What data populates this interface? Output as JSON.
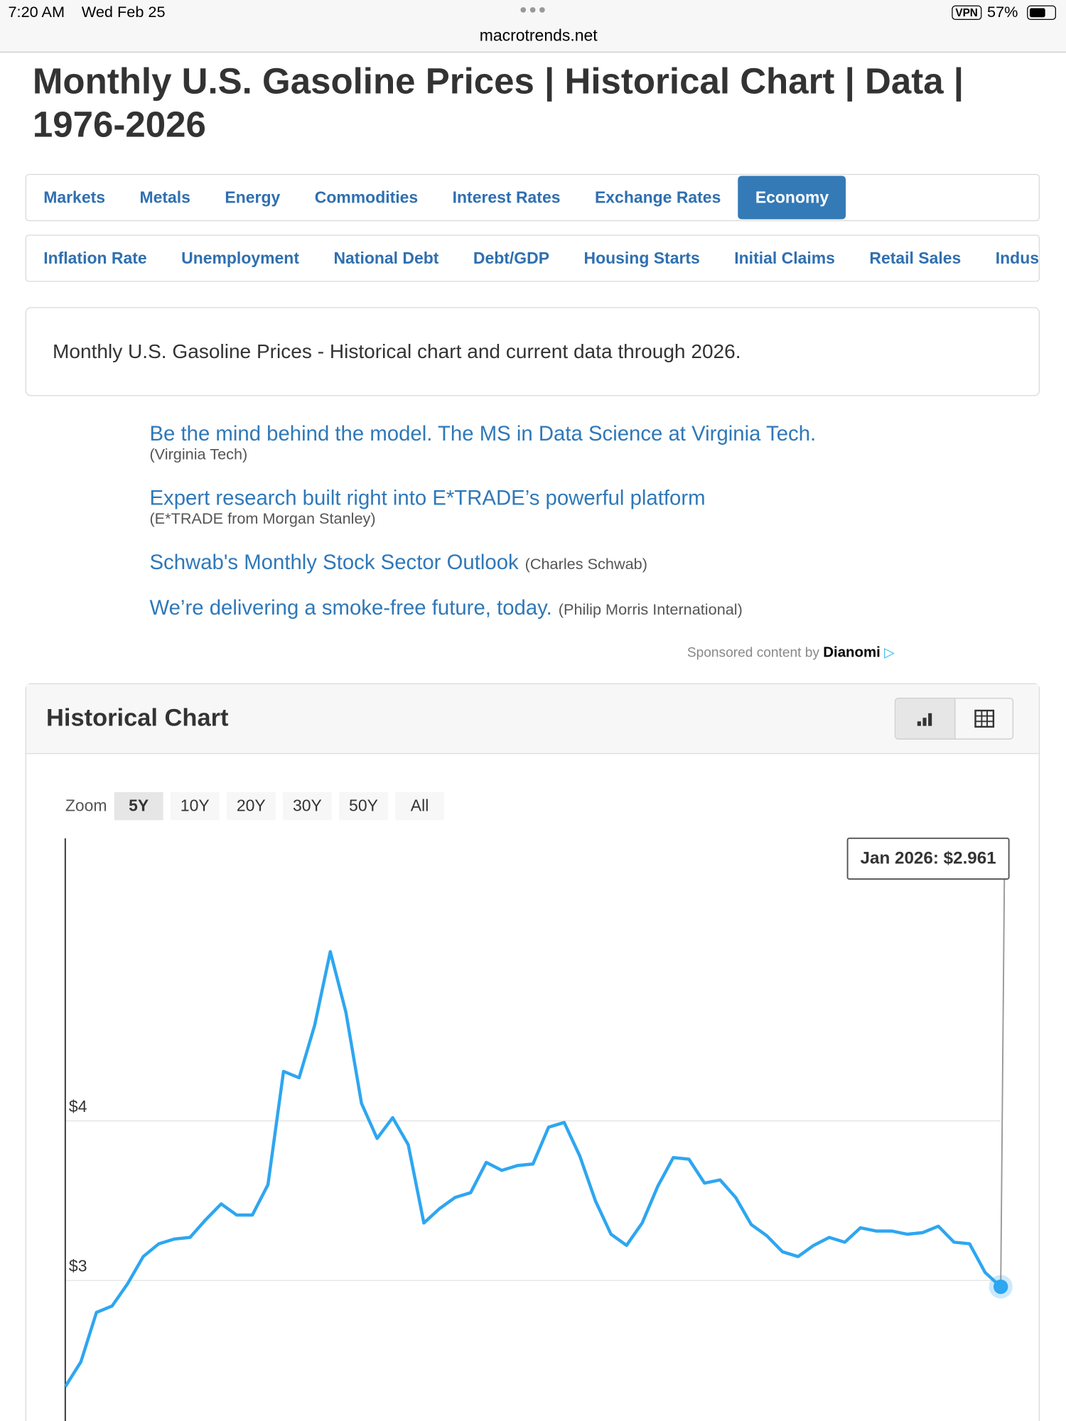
{
  "status": {
    "time": "7:20 AM",
    "date": "Wed Feb 25",
    "vpn": "VPN",
    "battery": "57%"
  },
  "url": "macrotrends.net",
  "title": "Monthly U.S. Gasoline Prices | Historical Chart | Data | 1976-2026",
  "nav_primary": {
    "items": [
      "Markets",
      "Metals",
      "Energy",
      "Commodities",
      "Interest Rates",
      "Exchange Rates",
      "Economy"
    ],
    "active": 6
  },
  "nav_secondary": {
    "items": [
      "Inflation Rate",
      "Unemployment",
      "National Debt",
      "Debt/GDP",
      "Housing Starts",
      "Initial Claims",
      "Retail Sales",
      "Industrial"
    ]
  },
  "description": "Monthly U.S. Gasoline Prices - Historical chart and current data through 2026.",
  "ads": [
    {
      "text": "Be the mind behind the model. The MS in Data Science at Virginia Tech.",
      "source": "(Virginia Tech)",
      "inline": false
    },
    {
      "text": "Expert research built right into E*TRADE’s powerful platform",
      "source": "(E*TRADE from Morgan Stanley)",
      "inline": false
    },
    {
      "text": "Schwab's Monthly Stock Sector Outlook",
      "source": "(Charles Schwab)",
      "inline": true
    },
    {
      "text": "We’re delivering a smoke-free future, today.",
      "source": "(Philip Morris International)",
      "inline": true
    }
  ],
  "sponsored": {
    "text": "Sponsored content by",
    "brand": "Dianomi"
  },
  "panel": {
    "title": "Historical Chart",
    "zoom_label": "Zoom",
    "zoom_options": [
      "5Y",
      "10Y",
      "20Y",
      "30Y",
      "50Y",
      "All"
    ],
    "zoom_active": 0
  },
  "chart_data": {
    "type": "line",
    "color": "#2ea6f0",
    "values": [
      2.335,
      2.49,
      2.8,
      2.84,
      2.98,
      3.15,
      3.23,
      3.26,
      3.27,
      3.38,
      3.48,
      3.41,
      3.41,
      3.6,
      4.31,
      4.27,
      4.6,
      5.06,
      4.68,
      4.11,
      3.89,
      4.02,
      3.85,
      3.36,
      3.45,
      3.52,
      3.55,
      3.74,
      3.69,
      3.72,
      3.73,
      3.96,
      3.99,
      3.78,
      3.5,
      3.29,
      3.22,
      3.36,
      3.59,
      3.77,
      3.76,
      3.61,
      3.63,
      3.52,
      3.35,
      3.28,
      3.18,
      3.15,
      3.22,
      3.27,
      3.24,
      3.33,
      3.31,
      3.31,
      3.29,
      3.3,
      3.34,
      3.24,
      3.23,
      3.05,
      2.961
    ],
    "ylim": [
      2.12,
      5.77
    ],
    "yticks": [
      {
        "value": 3,
        "label": "$3"
      },
      {
        "value": 4,
        "label": "$4"
      }
    ],
    "grid": true,
    "tooltip": "Jan 2026: $2.961"
  }
}
